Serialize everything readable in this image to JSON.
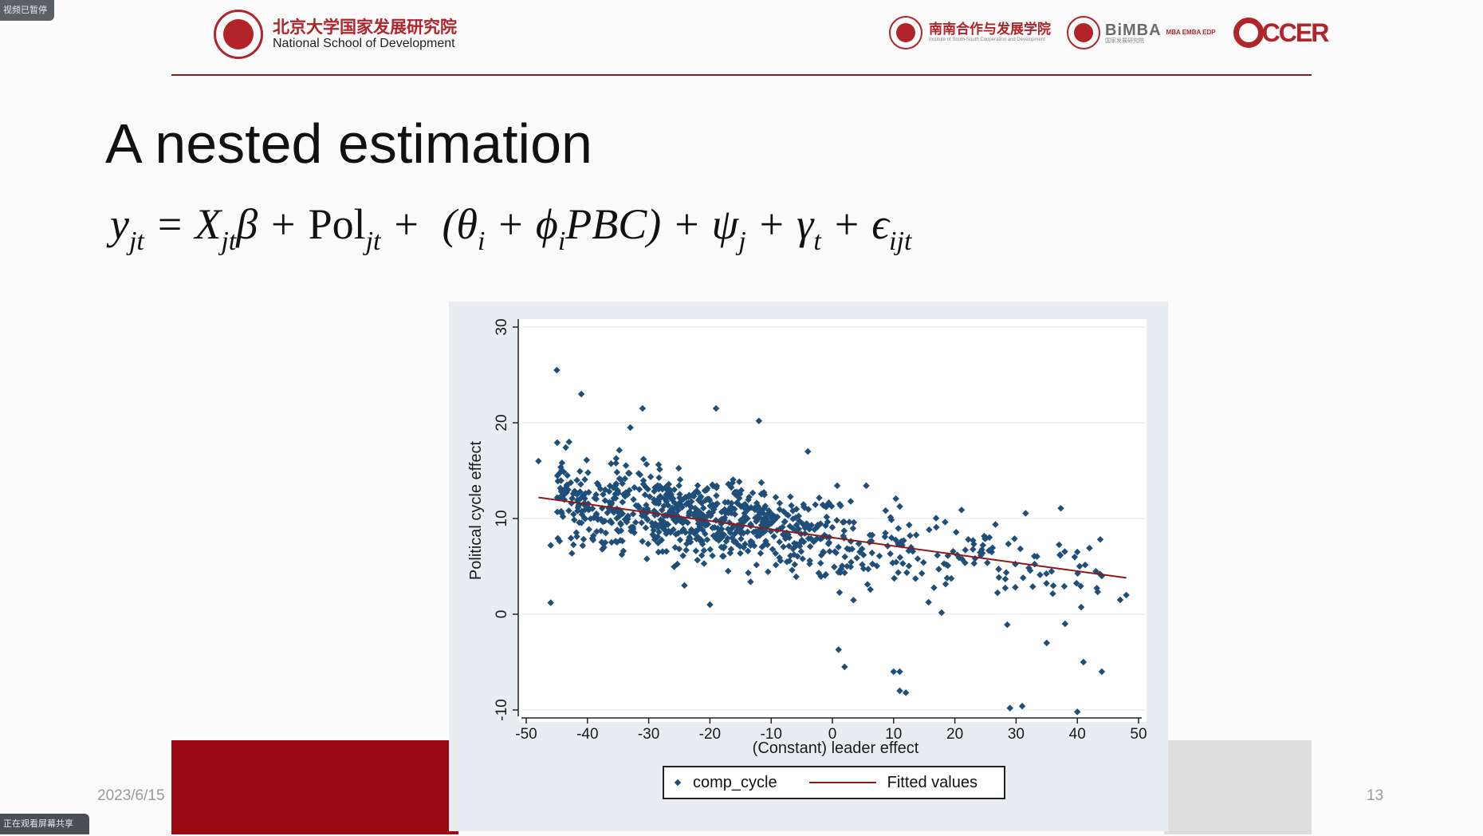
{
  "overlays": {
    "top_left": "视频已暂停",
    "bottom_left": "正在观看屏幕共享"
  },
  "header": {
    "logo_cn": "北京大学国家发展研究院",
    "logo_en": "National School of Development",
    "partner1_cn": "南南合作与发展学院",
    "partner1_en": "Institute of South-South Cooperation and Development",
    "partner2_name": "BiMBA",
    "partner2_sub": "国家发展研究院",
    "partner2_tag": "MBA EMBA EDP",
    "partner3_name": "CCER"
  },
  "slide": {
    "title": "A nested estimation",
    "date": "2023/6/15",
    "page_number": "13"
  },
  "colors": {
    "accent": "#9b0a12",
    "marker": "#1f4e79",
    "fit_line": "#8b1a1a"
  },
  "chart_data": {
    "type": "scatter",
    "xlabel": "(Constant) leader effect",
    "ylabel": "Political cycle effect",
    "xlim": [
      -50,
      50
    ],
    "ylim": [
      -10,
      30
    ],
    "x_ticks": [
      -50,
      -40,
      -30,
      -20,
      -10,
      0,
      10,
      20,
      30,
      40,
      50
    ],
    "y_ticks": [
      -10,
      0,
      10,
      20,
      30
    ],
    "grid": "horizontal",
    "legend": [
      "comp_cycle",
      "Fitted values"
    ],
    "legend_position": "bottom",
    "fitted_line": {
      "x": [
        -48,
        48
      ],
      "y": [
        12.2,
        3.8
      ]
    },
    "outliers": [
      {
        "x": -45,
        "y": 25.5
      },
      {
        "x": -41,
        "y": 23
      },
      {
        "x": -31,
        "y": 21.5
      },
      {
        "x": -19,
        "y": 21.5
      },
      {
        "x": -12,
        "y": 20.2
      },
      {
        "x": -33,
        "y": 19.5
      },
      {
        "x": -43,
        "y": 18
      },
      {
        "x": -4,
        "y": 17
      },
      {
        "x": -48,
        "y": 16
      },
      {
        "x": -46,
        "y": 7.2
      },
      {
        "x": -46,
        "y": 1.2
      },
      {
        "x": -20,
        "y": 1
      },
      {
        "x": 1,
        "y": -3.7
      },
      {
        "x": 2,
        "y": -5.5
      },
      {
        "x": 10,
        "y": -6
      },
      {
        "x": 11,
        "y": -6
      },
      {
        "x": 11,
        "y": -8
      },
      {
        "x": 12,
        "y": -8.2
      },
      {
        "x": 29,
        "y": -9.8
      },
      {
        "x": 31,
        "y": -9.6
      },
      {
        "x": 40,
        "y": -10.2
      },
      {
        "x": 44,
        "y": -6
      },
      {
        "x": 40,
        "y": 6.5
      },
      {
        "x": 44,
        "y": 4
      },
      {
        "x": 47,
        "y": 1.5
      },
      {
        "x": 48,
        "y": 2
      },
      {
        "x": 38,
        "y": -1
      },
      {
        "x": 35,
        "y": -3
      },
      {
        "x": 41,
        "y": -5
      }
    ],
    "cloud": {
      "n": 900,
      "x_range": [
        -45,
        44
      ],
      "noise_sd": 2.2
    }
  }
}
